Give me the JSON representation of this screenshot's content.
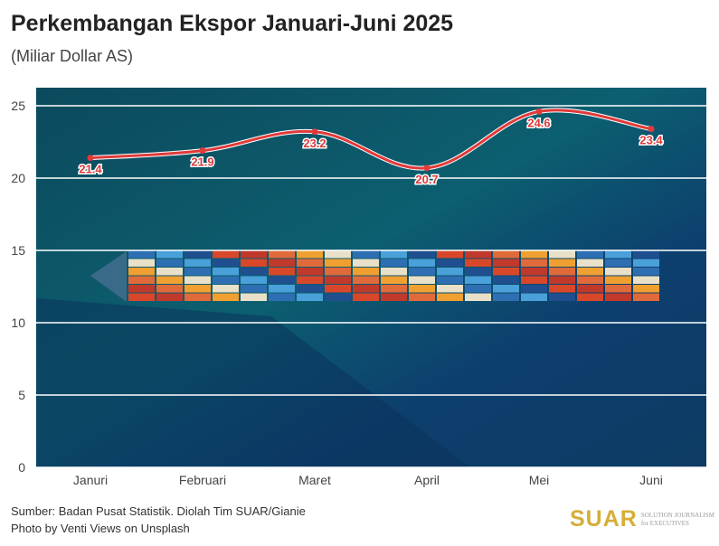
{
  "title": "Perkembangan Ekspor Januari-Juni 2025",
  "subtitle": "(Miliar Dollar AS)",
  "source": "Sumber: Badan Pusat Statistik. Diolah Tim SUAR/Gianie",
  "photo_credit": "Photo by Venti Views on Unsplash",
  "logo": {
    "name": "SUAR",
    "tagline1": "SOLUTION JOURNALISM",
    "tagline2": "for EXECUTIVES"
  },
  "chart_data": {
    "type": "line",
    "categories": [
      "Januri",
      "Februari",
      "Maret",
      "April",
      "Mei",
      "Juni"
    ],
    "values": [
      21.4,
      21.9,
      23.2,
      20.7,
      24.6,
      23.4
    ],
    "ylim": [
      0,
      25
    ],
    "yticks": [
      0,
      5,
      10,
      15,
      20,
      25
    ],
    "grid": true,
    "line_color": "#e03a3a",
    "background": "aerial photo of container ship on teal sea"
  }
}
